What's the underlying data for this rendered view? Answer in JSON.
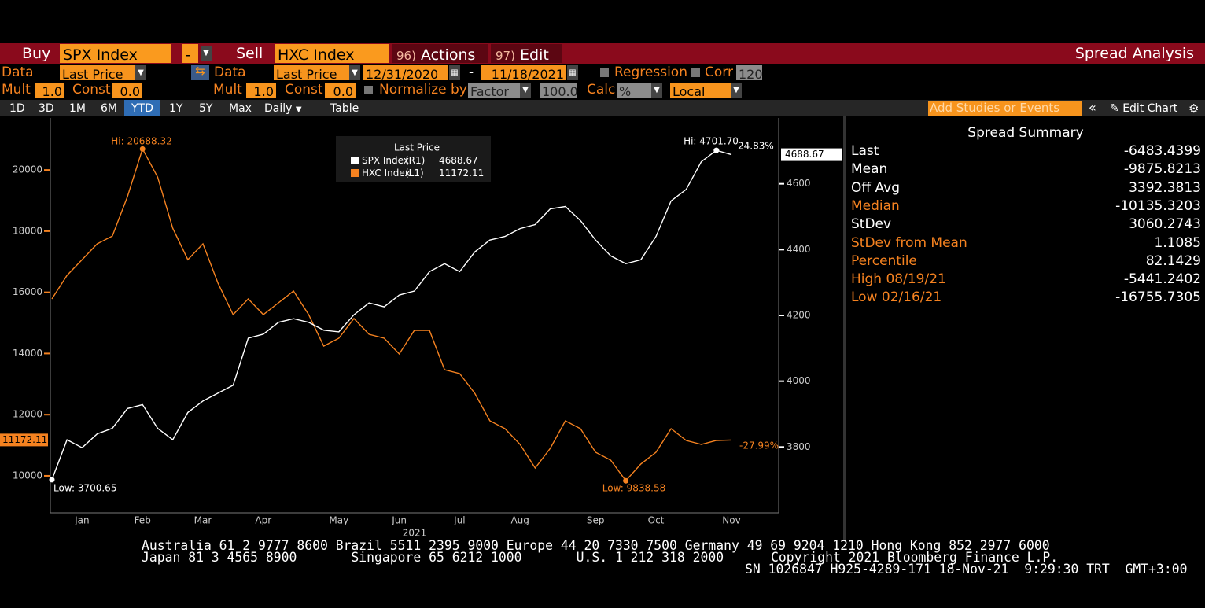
{
  "toolbar": {
    "buy": "Buy",
    "buy_ticker": "SPX Index",
    "minus": "-",
    "sell": "Sell",
    "sell_ticker": "HXC Index",
    "actions_num": "96)",
    "actions": "Actions",
    "edit_num": "97)",
    "edit": "Edit",
    "title": "Spread Analysis"
  },
  "row2": {
    "data1": "Data",
    "field1": "Last Price",
    "data2": "Data",
    "field2": "Last Price",
    "start": "12/31/2020",
    "dash": "-",
    "end": "11/18/2021",
    "regression": "Regression",
    "corr": "Corr",
    "corr_val": "120"
  },
  "row3": {
    "mult1": "Mult",
    "mult1_val": "1.0",
    "const1": "Const",
    "const1_val": "0.0",
    "mult2": "Mult",
    "mult2_val": "1.0",
    "const2": "Const",
    "const2_val": "0.0",
    "normalize": "Normalize by",
    "factor": "Factor",
    "factor_val": "100.0",
    "calc": "Calc",
    "calc_val": "%",
    "local": "Local"
  },
  "periods": [
    "1D",
    "3D",
    "1M",
    "6M",
    "YTD",
    "1Y",
    "5Y",
    "Max"
  ],
  "daily": "Daily",
  "table": "Table",
  "add_studies": "Add Studies or Events",
  "edit_chart": "Edit Chart",
  "chart_data": {
    "type": "line",
    "legend_title": "Last Price",
    "xlabel": "2021",
    "categories": [
      null,
      null,
      "Jan",
      null,
      null,
      null,
      "Feb",
      null,
      null,
      null,
      "Mar",
      null,
      null,
      null,
      "Apr",
      null,
      null,
      null,
      null,
      "May",
      null,
      null,
      null,
      "Jun",
      null,
      null,
      null,
      "Jul",
      null,
      null,
      null,
      "Aug",
      null,
      null,
      null,
      null,
      "Sep",
      null,
      null,
      null,
      "Oct",
      null,
      null,
      null,
      null,
      "Nov"
    ],
    "ylim": [
      8790,
      21700
    ],
    "yticks": [
      10000,
      12000,
      14000,
      16000,
      18000,
      20000
    ],
    "y2lim": [
      3600,
      4800
    ],
    "y2ticks": [
      3800,
      4000,
      4200,
      4400,
      4600
    ],
    "series": [
      {
        "name": "SPX Index",
        "tag": "(R1)",
        "last_label": "4688.67",
        "color": "#ffffff",
        "axis": "y2",
        "values": [
          3700.65,
          3822,
          3798,
          3840,
          3857,
          3917,
          3929,
          3857,
          3822,
          3905,
          3940,
          3964,
          3988,
          4131,
          4143,
          4179,
          4190,
          4179,
          4155,
          4150,
          4202,
          4238,
          4226,
          4262,
          4274,
          4333,
          4357,
          4333,
          4393,
          4429,
          4440,
          4464,
          4476,
          4524,
          4531,
          4488,
          4429,
          4381,
          4357,
          4369,
          4440,
          4548,
          4583,
          4667,
          4701.7,
          4688.67
        ]
      },
      {
        "name": "HXC Index",
        "tag": "(L1)",
        "last_label": "11172.11",
        "color": "#f58220",
        "axis": "y",
        "values": [
          15784,
          16555,
          17069,
          17584,
          17841,
          19126,
          20688.32,
          19769,
          18098,
          17069,
          17584,
          16298,
          15270,
          15784,
          15270,
          15656,
          16041,
          15270,
          14242,
          14499,
          15141,
          14627,
          14499,
          13985,
          14756,
          14756,
          13470,
          13342,
          12699,
          11799,
          11542,
          11028,
          10257,
          10900,
          11799,
          11542,
          10771,
          10514,
          9838.58,
          10386,
          10771,
          11542,
          11157,
          11028,
          11157,
          11172.11
        ]
      }
    ],
    "annotations": {
      "hxc_hi": "Hi: 20688.32",
      "hxc_low": "Low: 9838.58",
      "spx_hi": "Hi: 4701.70",
      "spx_low": "Low: 3700.65",
      "spx_change": "24.83%",
      "hxc_change": "-27.99%"
    }
  },
  "summary": {
    "title": "Spread Summary",
    "rows": [
      {
        "label": "Last",
        "value": "-6483.4399",
        "color": "#ffffff"
      },
      {
        "label": "Mean",
        "value": "-9875.8213",
        "color": "#ffffff"
      },
      {
        "label": "Off Avg",
        "value": "3392.3813",
        "color": "#ffffff"
      },
      {
        "label": "Median",
        "value": "-10135.3203",
        "color": "#f58220"
      },
      {
        "label": "StDev",
        "value": "3060.2743",
        "color": "#ffffff"
      },
      {
        "label": "StDev from Mean",
        "value": "1.1085",
        "color": "#f58220"
      },
      {
        "label": "Percentile",
        "value": "82.1429",
        "color": "#f58220"
      },
      {
        "label": "High 08/19/21",
        "value": "-5441.2402",
        "color": "#f58220"
      },
      {
        "label": "Low 02/16/21",
        "value": "-16755.7305",
        "color": "#f58220"
      }
    ]
  },
  "footer": [
    "Australia 61 2 9777 8600 Brazil 5511 2395 9000 Europe 44 20 7330 7500 Germany 49 69 9204 1210 Hong Kong 852 2977 6000",
    "Japan 81 3 4565 8900       Singapore 65 6212 1000       U.S. 1 212 318 2000",
    "Copyright 2021 Bloomberg Finance L.P.",
    "SN 1026847 H925-4289-171 18-Nov-21  9:29:30 TRT  GMT+3:00"
  ]
}
